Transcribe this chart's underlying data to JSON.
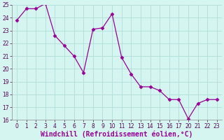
{
  "x_indices": [
    0,
    1,
    2,
    3,
    4,
    5,
    6,
    7,
    8,
    9,
    10,
    11,
    12,
    13,
    14,
    15,
    16,
    17,
    18,
    19,
    20,
    21
  ],
  "x_labels": [
    "0",
    "1",
    "2",
    "3",
    "4",
    "5",
    "6",
    "7",
    "8",
    "9",
    "10",
    "11",
    "12",
    "13",
    "14",
    "15",
    "16",
    "17",
    "20",
    "21",
    "22",
    "23"
  ],
  "y": [
    23.8,
    24.7,
    24.7,
    25.1,
    22.6,
    21.8,
    21.0,
    19.7,
    23.1,
    23.2,
    24.3,
    20.9,
    19.6,
    18.6,
    18.6,
    18.3,
    17.6,
    17.6,
    16.1,
    17.3,
    17.6,
    17.6
  ],
  "line_color": "#990099",
  "marker": "D",
  "marker_size": 2.5,
  "bg_color": "#d4f5f0",
  "grid_color": "#b0ddd8",
  "ylim": [
    16,
    25
  ],
  "yticks": [
    16,
    17,
    18,
    19,
    20,
    21,
    22,
    23,
    24,
    25
  ],
  "xlabel": "Windchill (Refroidissement éolien,°C)",
  "xlabel_color": "#990099",
  "tick_fontsize": 5.5,
  "label_fontsize": 7.0
}
